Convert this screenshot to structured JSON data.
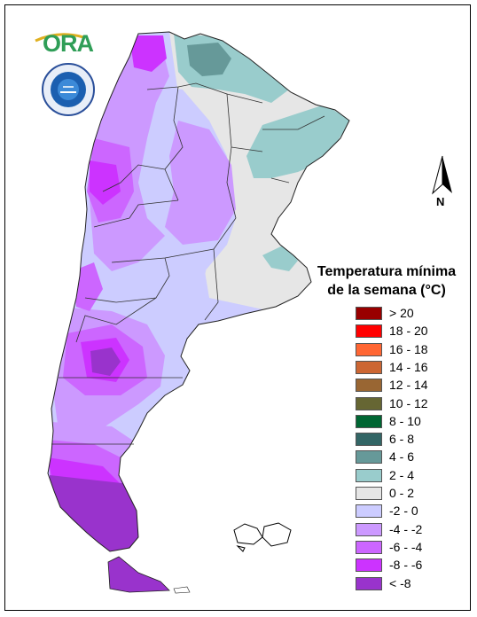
{
  "legend": {
    "title_line1": "Temperatura mínima",
    "title_line2": "de la semana (°C)",
    "items": [
      {
        "label": "> 20",
        "color": "#990000"
      },
      {
        "label": "18 - 20",
        "color": "#ff0000"
      },
      {
        "label": "16 - 18",
        "color": "#ff6633"
      },
      {
        "label": "14 - 16",
        "color": "#cc6633"
      },
      {
        "label": "12 - 14",
        "color": "#996633"
      },
      {
        "label": "10 - 12",
        "color": "#666633"
      },
      {
        "label": "8 - 10",
        "color": "#006633"
      },
      {
        "label": "6 - 8",
        "color": "#336666"
      },
      {
        "label": "4 - 6",
        "color": "#669999"
      },
      {
        "label": "2 - 4",
        "color": "#99cccc"
      },
      {
        "label": "0 - 2",
        "color": "#e6e6e6"
      },
      {
        "label": "-2 - 0",
        "color": "#ccccff"
      },
      {
        "label": "-4 - -2",
        "color": "#cc99ff"
      },
      {
        "label": "-6 - -4",
        "color": "#cc66ff"
      },
      {
        "label": "-8 - -6",
        "color": "#cc33ff"
      },
      {
        "label": "< -8",
        "color": "#9933cc"
      }
    ]
  },
  "logos": {
    "ora_text": "ORA"
  },
  "north_arrow": {
    "letter": "N"
  }
}
